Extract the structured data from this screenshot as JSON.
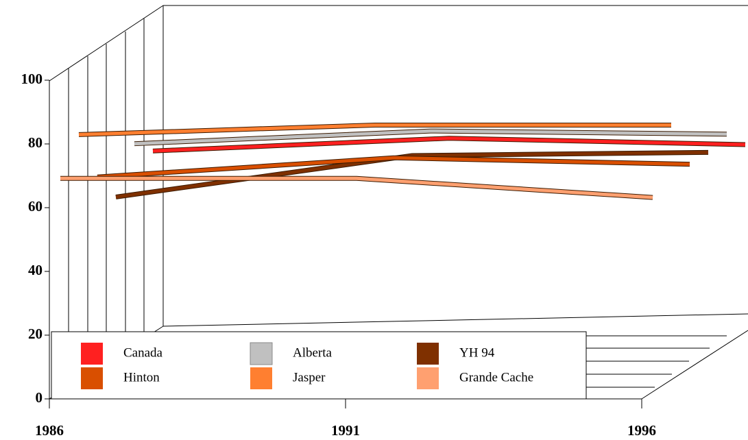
{
  "chart_data": {
    "type": "line",
    "x": [
      1986,
      1991,
      1996
    ],
    "xlim": [
      1986,
      1996
    ],
    "xticks": [
      1986,
      1991,
      1996
    ],
    "ylim": [
      0,
      100
    ],
    "yticks": [
      0,
      20,
      40,
      60,
      80,
      100
    ],
    "series": [
      {
        "name": "Canada",
        "color": "#ff2020",
        "values": [
          57,
          61,
          59
        ]
      },
      {
        "name": "Alberta",
        "color": "#c0c0c0",
        "values": [
          63,
          67,
          66
        ]
      },
      {
        "name": "YH 94",
        "color": "#7f3000",
        "values": [
          50,
          63,
          64
        ]
      },
      {
        "name": "Hinton",
        "color": "#d94f00",
        "values": [
          60,
          66,
          64
        ]
      },
      {
        "name": "Jasper",
        "color": "#ff7f30",
        "values": [
          77,
          80,
          80
        ]
      },
      {
        "name": "Grande Cache",
        "color": "#ffa070",
        "values": [
          67,
          67,
          61
        ]
      }
    ]
  }
}
